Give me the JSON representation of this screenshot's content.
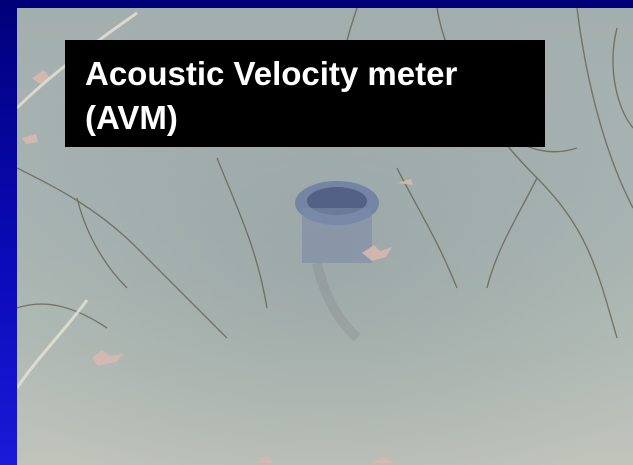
{
  "slide": {
    "title_lines": [
      "Acoustic Velocity meter",
      "(AVM)"
    ]
  }
}
